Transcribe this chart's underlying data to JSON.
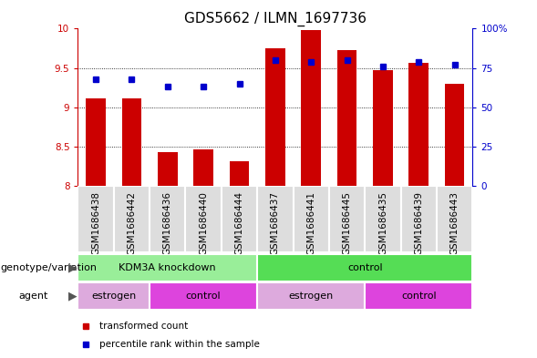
{
  "title": "GDS5662 / ILMN_1697736",
  "samples": [
    "GSM1686438",
    "GSM1686442",
    "GSM1686436",
    "GSM1686440",
    "GSM1686444",
    "GSM1686437",
    "GSM1686441",
    "GSM1686445",
    "GSM1686435",
    "GSM1686439",
    "GSM1686443"
  ],
  "bar_values": [
    9.12,
    9.12,
    8.43,
    8.47,
    8.32,
    9.75,
    9.98,
    9.73,
    9.47,
    9.57,
    9.3
  ],
  "percentile_values": [
    68,
    68,
    63,
    63,
    65,
    80,
    79,
    80,
    76,
    79,
    77
  ],
  "ylim_left": [
    8.0,
    10.0
  ],
  "ylim_right": [
    0,
    100
  ],
  "yticks_left": [
    8.0,
    8.5,
    9.0,
    9.5,
    10.0
  ],
  "yticks_right": [
    0,
    25,
    50,
    75,
    100
  ],
  "ytick_labels_left": [
    "8",
    "8.5",
    "9",
    "9.5",
    "10"
  ],
  "ytick_labels_right": [
    "0",
    "25",
    "50",
    "75",
    "100%"
  ],
  "bar_color": "#cc0000",
  "dot_color": "#0000cc",
  "genotype_groups": [
    {
      "name": "KDM3A knockdown",
      "start": 0,
      "end": 5,
      "color": "#99ee99"
    },
    {
      "name": "control",
      "start": 5,
      "end": 11,
      "color": "#55dd55"
    }
  ],
  "agent_groups": [
    {
      "name": "estrogen",
      "start": 0,
      "end": 2,
      "color": "#ddaadd"
    },
    {
      "name": "control",
      "start": 2,
      "end": 5,
      "color": "#dd44dd"
    },
    {
      "name": "estrogen",
      "start": 5,
      "end": 8,
      "color": "#ddaadd"
    },
    {
      "name": "control",
      "start": 8,
      "end": 11,
      "color": "#dd44dd"
    }
  ],
  "legend_items": [
    {
      "label": "transformed count",
      "color": "#cc0000"
    },
    {
      "label": "percentile rank within the sample",
      "color": "#0000cc"
    }
  ],
  "title_fontsize": 11,
  "tick_fontsize": 7.5,
  "label_fontsize": 8,
  "sample_bg_color": "#dddddd",
  "sample_border_color": "#ffffff"
}
